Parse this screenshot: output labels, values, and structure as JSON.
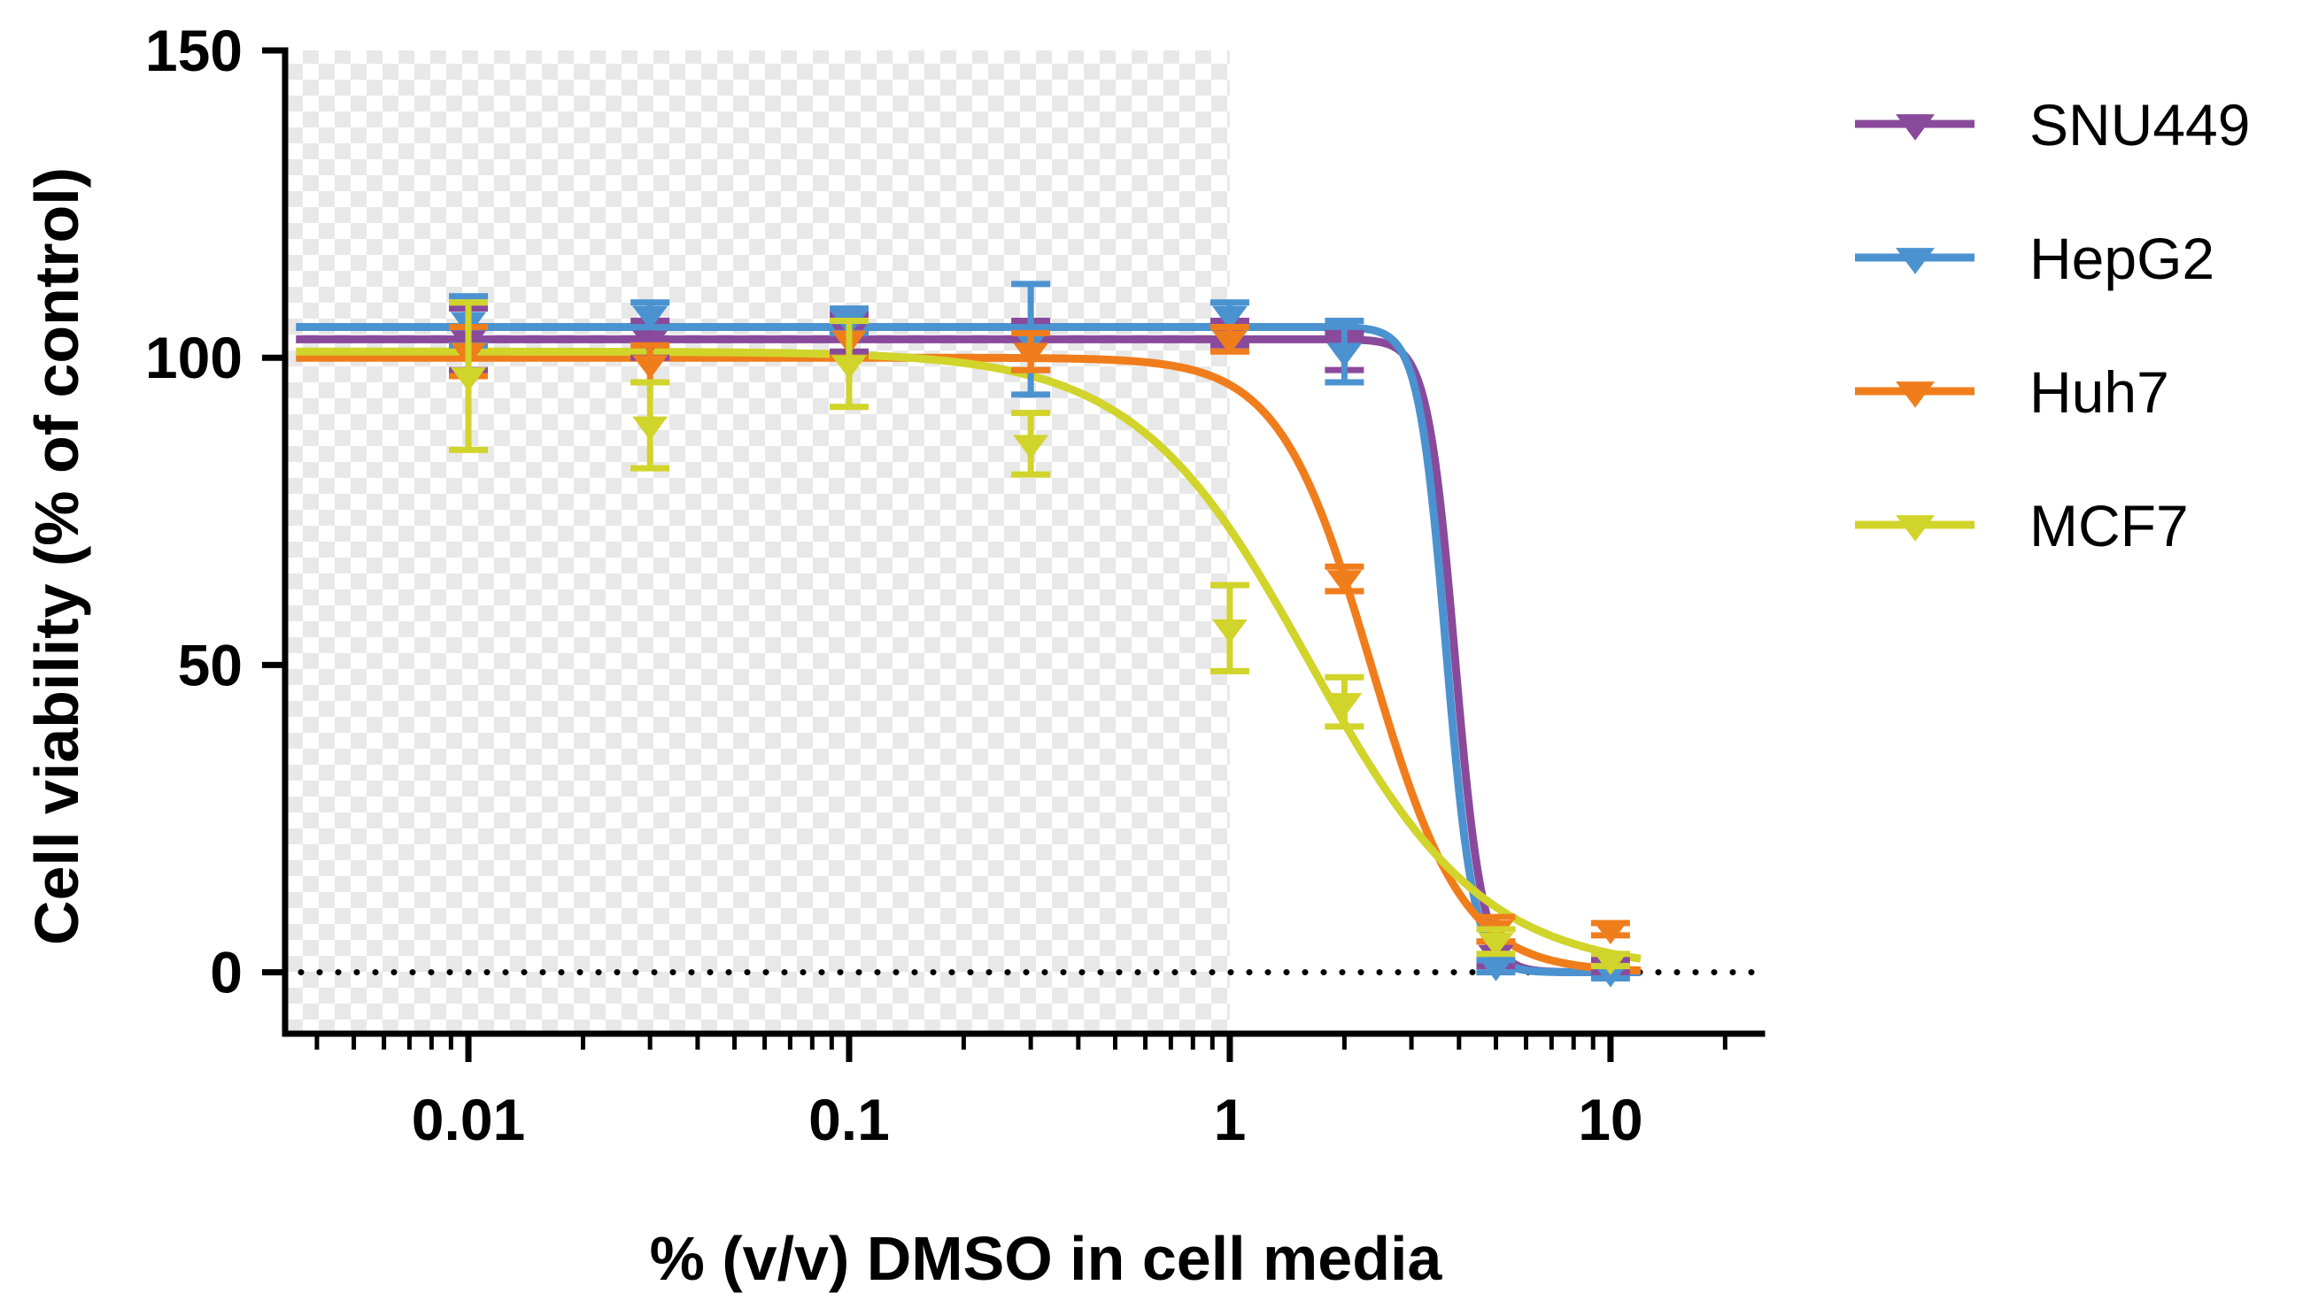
{
  "chart_data": {
    "type": "line",
    "title": "",
    "xlabel": "% (v/v) DMSO in cell media",
    "ylabel": "Cell viability (% of control)",
    "xscale": "log",
    "xlim": [
      0.0033,
      25
    ],
    "ylim": [
      -10,
      150
    ],
    "yticks": [
      0,
      50,
      100,
      150
    ],
    "ytick_labels": [
      "0",
      "50",
      "100",
      "150"
    ],
    "xticks": [
      0.01,
      0.1,
      1,
      10
    ],
    "xtick_labels": [
      "0.01",
      "0.1",
      "1",
      "10"
    ],
    "shaded_region": {
      "x_from": 0.0033,
      "x_to": 1,
      "pattern": "checkerboard"
    },
    "reference_line": {
      "y": 0,
      "style": "dotted"
    },
    "legend_position": "right",
    "series": [
      {
        "name": "SNU449",
        "color": "#8a4a9c",
        "marker": "triangle-down",
        "x": [
          0.01,
          0.03,
          0.1,
          0.3,
          1,
          2,
          5,
          10
        ],
        "y": [
          103,
          103,
          104,
          102,
          104,
          101,
          3,
          1
        ],
        "err": [
          5,
          3,
          3,
          4,
          2,
          3,
          2,
          1
        ],
        "fit": {
          "top": 103,
          "bottom": 0,
          "ec50": 3.9,
          "hill": 12
        }
      },
      {
        "name": "HepG2",
        "color": "#4b92d0",
        "marker": "triangle-down",
        "x": [
          0.01,
          0.03,
          0.1,
          0.3,
          1,
          2,
          5,
          10
        ],
        "y": [
          106,
          107,
          106,
          103,
          107,
          101,
          1,
          0
        ],
        "err": [
          4,
          2,
          2,
          9,
          2,
          5,
          1,
          1
        ],
        "fit": {
          "top": 105,
          "bottom": 0,
          "ec50": 3.7,
          "hill": 12
        }
      },
      {
        "name": "Huh7",
        "color": "#f07d1c",
        "marker": "triangle-down",
        "x": [
          0.01,
          0.03,
          0.1,
          0.3,
          1,
          2,
          5,
          10
        ],
        "y": [
          101,
          99,
          103,
          101,
          103,
          64,
          7,
          7
        ],
        "err": [
          4,
          3,
          3,
          3,
          2,
          2,
          2,
          1
        ],
        "fit": {
          "top": 100,
          "bottom": 0,
          "ec50": 2.35,
          "hill": 3.6
        }
      },
      {
        "name": "MCF7",
        "color": "#d1d42a",
        "marker": "triangle-down",
        "x": [
          0.01,
          0.03,
          0.1,
          0.3,
          1,
          2,
          5,
          10
        ],
        "y": [
          97,
          89,
          99,
          86,
          56,
          44,
          5,
          2
        ],
        "err": [
          12,
          7,
          7,
          5,
          7,
          4,
          2,
          1
        ],
        "fit": {
          "top": 101,
          "bottom": 0,
          "ec50": 1.62,
          "hill": 1.9
        }
      }
    ]
  }
}
